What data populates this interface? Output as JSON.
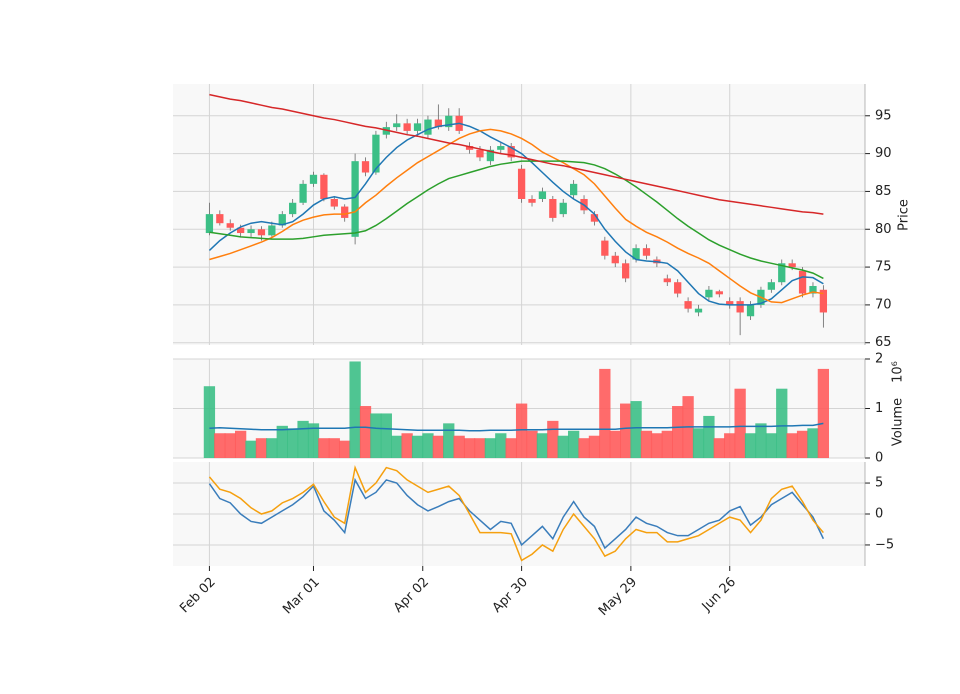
{
  "chart_data": {
    "type": "candlestick",
    "up_color": "#3cbf86",
    "down_color": "#ff5b5b",
    "grid": true,
    "x": [
      0,
      2,
      4,
      6,
      8,
      10,
      12,
      14,
      16,
      18,
      20,
      22,
      24,
      26,
      28,
      30,
      32,
      34,
      36,
      38,
      40,
      42,
      44,
      46,
      48,
      50,
      52,
      54,
      56,
      58,
      60,
      62,
      64,
      66,
      68,
      70,
      72,
      74,
      76,
      78,
      80,
      82,
      84,
      86,
      88,
      90,
      92,
      94,
      96,
      98,
      100,
      102,
      104,
      106,
      108,
      110,
      112,
      114,
      116,
      118
    ],
    "xlim": [
      -7,
      126
    ],
    "xticks": [
      {
        "value": 0,
        "label": "Feb 02"
      },
      {
        "value": 20,
        "label": "Mar 01"
      },
      {
        "value": 41,
        "label": "Apr 02"
      },
      {
        "value": 60,
        "label": "Apr 30"
      },
      {
        "value": 81,
        "label": "May 29"
      },
      {
        "value": 100,
        "label": "Jun 26"
      }
    ],
    "ylabel": "Price",
    "ylim": [
      64.7,
      99.2
    ],
    "yticks": [
      65,
      70,
      75,
      80,
      85,
      90,
      95
    ],
    "ohlc": [
      [
        79.5,
        83.5,
        79.2,
        82.0
      ],
      [
        82.0,
        82.5,
        80.5,
        80.8
      ],
      [
        80.8,
        81.3,
        79.8,
        80.2
      ],
      [
        80.2,
        80.6,
        78.9,
        79.5
      ],
      [
        79.5,
        80.5,
        79.0,
        80.0
      ],
      [
        80.0,
        80.4,
        78.5,
        79.2
      ],
      [
        79.2,
        81.0,
        78.9,
        80.5
      ],
      [
        80.5,
        82.4,
        80.2,
        82.0
      ],
      [
        82.0,
        84.0,
        81.6,
        83.5
      ],
      [
        83.5,
        86.5,
        83.2,
        86.0
      ],
      [
        86.0,
        87.6,
        85.6,
        87.2
      ],
      [
        87.2,
        87.4,
        83.7,
        84.0
      ],
      [
        84.0,
        84.4,
        82.6,
        83.0
      ],
      [
        83.0,
        83.3,
        81.0,
        81.5
      ],
      [
        79.0,
        90.0,
        78.0,
        89.0
      ],
      [
        89.0,
        89.5,
        87.0,
        87.5
      ],
      [
        87.5,
        93.0,
        87.2,
        92.5
      ],
      [
        92.5,
        94.2,
        92.0,
        93.5
      ],
      [
        93.5,
        95.2,
        93.0,
        94.0
      ],
      [
        94.0,
        94.6,
        92.5,
        93.0
      ],
      [
        93.0,
        94.6,
        92.6,
        94.0
      ],
      [
        92.5,
        95.0,
        92.0,
        94.5
      ],
      [
        94.5,
        96.5,
        93.2,
        93.5
      ],
      [
        93.5,
        96.0,
        93.0,
        95.0
      ],
      [
        95.0,
        96.0,
        92.6,
        93.0
      ],
      [
        91.0,
        91.5,
        90.0,
        90.5
      ],
      [
        90.5,
        91.0,
        89.0,
        89.5
      ],
      [
        89.0,
        91.0,
        88.5,
        90.5
      ],
      [
        90.5,
        91.5,
        90.0,
        91.0
      ],
      [
        91.0,
        91.4,
        89.0,
        89.5
      ],
      [
        88.0,
        88.5,
        83.5,
        84.0
      ],
      [
        84.0,
        84.5,
        83.0,
        83.5
      ],
      [
        84.0,
        85.5,
        83.6,
        85.0
      ],
      [
        84.0,
        84.4,
        81.0,
        81.5
      ],
      [
        82.0,
        84.0,
        81.6,
        83.5
      ],
      [
        84.5,
        86.5,
        84.0,
        86.0
      ],
      [
        84.0,
        84.5,
        82.0,
        82.5
      ],
      [
        82.0,
        82.4,
        80.5,
        81.0
      ],
      [
        78.5,
        79.0,
        76.0,
        76.5
      ],
      [
        76.5,
        77.0,
        75.0,
        75.5
      ],
      [
        75.5,
        76.0,
        73.0,
        73.5
      ],
      [
        76.0,
        78.0,
        75.6,
        77.5
      ],
      [
        77.5,
        78.0,
        76.0,
        76.5
      ],
      [
        76.0,
        76.4,
        75.0,
        75.5
      ],
      [
        73.5,
        74.0,
        72.5,
        73.0
      ],
      [
        73.0,
        73.4,
        71.0,
        71.5
      ],
      [
        70.5,
        71.0,
        69.0,
        69.5
      ],
      [
        69.0,
        70.0,
        68.5,
        69.5
      ],
      [
        71.0,
        72.5,
        70.6,
        72.0
      ],
      [
        71.8,
        72.0,
        71.0,
        71.4
      ],
      [
        70.5,
        71.0,
        69.5,
        70.0
      ],
      [
        70.5,
        71.0,
        66.0,
        69.0
      ],
      [
        68.5,
        70.5,
        68.0,
        70.0
      ],
      [
        70.0,
        72.4,
        69.6,
        72.0
      ],
      [
        72.0,
        73.4,
        71.6,
        73.0
      ],
      [
        73.0,
        76.0,
        72.6,
        75.5
      ],
      [
        75.5,
        76.0,
        74.6,
        75.0
      ],
      [
        74.5,
        75.0,
        71.0,
        71.5
      ],
      [
        71.5,
        73.0,
        71.0,
        72.5
      ],
      [
        72.0,
        72.6,
        67.0,
        69.0
      ]
    ],
    "series": [
      {
        "color": "#1f77b4",
        "values": [
          77.2,
          78.5,
          79.5,
          80.3,
          80.8,
          81.0,
          80.8,
          80.6,
          81.0,
          82.0,
          83.2,
          84.0,
          84.3,
          84.0,
          84.2,
          86.0,
          88.0,
          89.5,
          90.8,
          91.8,
          92.5,
          93.2,
          93.6,
          93.8,
          94.0,
          93.6,
          93.0,
          92.2,
          91.5,
          90.8,
          90.0,
          88.8,
          87.5,
          86.2,
          85.0,
          84.0,
          83.2,
          82.0,
          80.0,
          78.4,
          77.0,
          76.0,
          75.8,
          75.7,
          75.5,
          74.5,
          73.0,
          71.5,
          70.5,
          70.1,
          70.0,
          70.0,
          70.0,
          70.2,
          70.8,
          72.0,
          73.2,
          73.7,
          73.6,
          72.8
        ]
      },
      {
        "color": "#ff7f0e",
        "values": [
          76.0,
          76.4,
          76.8,
          77.3,
          77.8,
          78.3,
          78.9,
          79.7,
          80.6,
          81.2,
          81.6,
          81.9,
          82.0,
          82.0,
          82.3,
          83.5,
          84.5,
          85.7,
          86.8,
          87.8,
          88.8,
          89.6,
          90.4,
          91.2,
          92.0,
          92.6,
          93.0,
          93.2,
          93.0,
          92.6,
          92.0,
          91.2,
          90.2,
          89.5,
          88.8,
          88.0,
          87.2,
          86.0,
          84.4,
          82.8,
          81.3,
          80.4,
          79.6,
          79.0,
          78.3,
          77.5,
          76.8,
          76.2,
          75.5,
          74.5,
          73.5,
          72.5,
          71.6,
          71.0,
          70.4,
          70.3,
          70.8,
          71.3,
          71.7,
          71.5
        ]
      },
      {
        "color": "#2ca02c",
        "values": [
          79.6,
          79.4,
          79.2,
          79.0,
          78.9,
          78.8,
          78.7,
          78.7,
          78.7,
          78.8,
          79.0,
          79.2,
          79.3,
          79.4,
          79.5,
          79.8,
          80.5,
          81.4,
          82.4,
          83.4,
          84.3,
          85.2,
          86.0,
          86.7,
          87.1,
          87.5,
          87.9,
          88.3,
          88.6,
          88.8,
          89.0,
          89.0,
          89.0,
          89.0,
          89.0,
          88.9,
          88.8,
          88.5,
          88.0,
          87.3,
          86.5,
          85.6,
          84.6,
          83.6,
          82.5,
          81.4,
          80.4,
          79.5,
          78.6,
          77.9,
          77.3,
          76.7,
          76.2,
          75.8,
          75.5,
          75.2,
          74.9,
          74.6,
          74.2,
          73.5
        ]
      },
      {
        "color": "#d62728",
        "values": [
          97.8,
          97.5,
          97.2,
          97.0,
          96.7,
          96.4,
          96.1,
          95.9,
          95.6,
          95.3,
          95.0,
          94.7,
          94.5,
          94.2,
          93.9,
          93.6,
          93.4,
          93.1,
          92.8,
          92.5,
          92.3,
          92.0,
          91.7,
          91.4,
          91.2,
          90.9,
          90.6,
          90.3,
          90.0,
          89.8,
          89.5,
          89.2,
          88.9,
          88.6,
          88.4,
          88.1,
          87.8,
          87.5,
          87.2,
          86.9,
          86.6,
          86.3,
          86.0,
          85.7,
          85.4,
          85.1,
          84.8,
          84.5,
          84.2,
          83.9,
          83.7,
          83.5,
          83.3,
          83.1,
          82.9,
          82.7,
          82.5,
          82.3,
          82.2,
          82.0
        ]
      }
    ],
    "volume": {
      "type": "bar",
      "ylabel": "Volume",
      "scale_label": "10⁶",
      "ylim": [
        0,
        2
      ],
      "yticks": [
        0,
        1,
        2
      ],
      "values": [
        1.45,
        0.5,
        0.5,
        0.55,
        0.35,
        0.4,
        0.4,
        0.65,
        0.6,
        0.75,
        0.7,
        0.4,
        0.4,
        0.35,
        1.95,
        1.05,
        0.9,
        0.9,
        0.45,
        0.5,
        0.45,
        0.5,
        0.45,
        0.7,
        0.45,
        0.4,
        0.4,
        0.4,
        0.5,
        0.4,
        1.1,
        0.55,
        0.5,
        0.75,
        0.45,
        0.55,
        0.4,
        0.45,
        1.8,
        0.55,
        1.1,
        1.15,
        0.55,
        0.5,
        0.55,
        1.05,
        1.25,
        0.6,
        0.85,
        0.4,
        0.5,
        1.4,
        0.5,
        0.7,
        0.5,
        1.4,
        0.5,
        0.55,
        0.6,
        1.8
      ],
      "average": {
        "color": "#1f77b4",
        "values": [
          0.6,
          0.61,
          0.6,
          0.59,
          0.58,
          0.57,
          0.57,
          0.57,
          0.58,
          0.59,
          0.6,
          0.6,
          0.6,
          0.6,
          0.62,
          0.62,
          0.6,
          0.59,
          0.58,
          0.57,
          0.56,
          0.56,
          0.56,
          0.56,
          0.56,
          0.55,
          0.55,
          0.56,
          0.56,
          0.56,
          0.57,
          0.57,
          0.57,
          0.58,
          0.58,
          0.58,
          0.58,
          0.58,
          0.58,
          0.58,
          0.6,
          0.61,
          0.61,
          0.61,
          0.61,
          0.62,
          0.63,
          0.63,
          0.63,
          0.63,
          0.63,
          0.64,
          0.64,
          0.64,
          0.64,
          0.65,
          0.65,
          0.66,
          0.66,
          0.7
        ]
      }
    },
    "macd": {
      "type": "line",
      "ylim": [
        -8.4,
        8.4
      ],
      "yticks": [
        {
          "value": -5,
          "label": "−5"
        },
        0,
        5
      ],
      "series": [
        {
          "color": "#3a7dbb",
          "values": [
            4.9,
            2.5,
            1.8,
            0,
            -1.2,
            -1.5,
            -0.5,
            0.5,
            1.5,
            2.8,
            4.5,
            0.5,
            -1,
            -3,
            5.5,
            2.5,
            3.5,
            5.5,
            5,
            3,
            1.5,
            0.5,
            1.2,
            2,
            2.5,
            0.5,
            -1,
            -2.5,
            -1.2,
            -1.5,
            -5,
            -3.5,
            -2,
            -4,
            -0.5,
            2,
            -0.5,
            -2,
            -5.5,
            -4,
            -2.5,
            -0.5,
            -1.5,
            -2,
            -3,
            -3.5,
            -3.5,
            -2.5,
            -1.5,
            -1,
            0.5,
            1.2,
            -1.8,
            -0.5,
            1.5,
            2.5,
            3.5,
            1.5,
            -0.5,
            -4
          ]
        },
        {
          "color": "#f5a00f",
          "values": [
            6,
            4,
            3.5,
            2.5,
            1,
            0,
            0.5,
            1.8,
            2.5,
            3.5,
            4.8,
            2,
            -0.5,
            -1.5,
            7.5,
            3.5,
            5,
            7.5,
            7,
            5.5,
            4.5,
            3.5,
            4,
            4.5,
            3,
            0,
            -3,
            -3,
            -3,
            -3.2,
            -7.5,
            -6.5,
            -5,
            -6,
            -2.5,
            0,
            -2,
            -4,
            -6.8,
            -6,
            -4,
            -2.5,
            -3,
            -3,
            -4.5,
            -4.5,
            -4,
            -3.5,
            -2.5,
            -1.5,
            -0.5,
            -1,
            -3,
            -1,
            2.5,
            4,
            4.5,
            2,
            -1,
            -3
          ]
        }
      ]
    }
  }
}
